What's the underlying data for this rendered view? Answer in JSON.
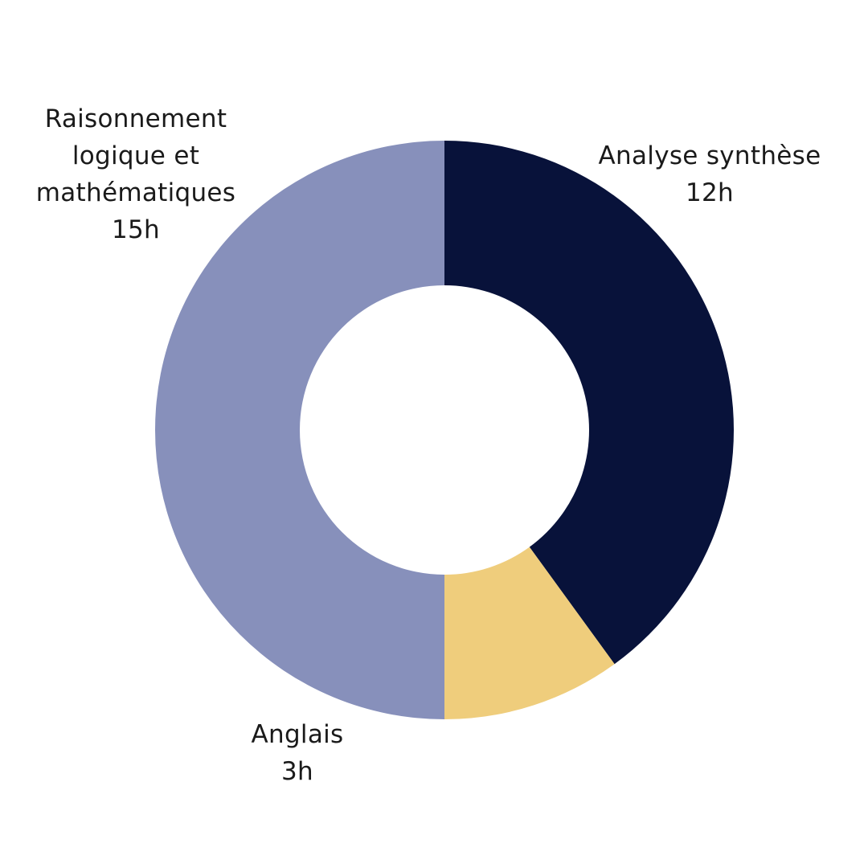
{
  "chart_data": {
    "type": "pie",
    "donut": true,
    "start": "top",
    "direction": "clockwise",
    "slices": [
      {
        "key": "analyse",
        "label_lines": [
          "Analyse synthèse"
        ],
        "value_text": "12h",
        "value": 12,
        "color": "#08123a"
      },
      {
        "key": "anglais",
        "label_lines": [
          "Anglais"
        ],
        "value_text": "3h",
        "value": 3,
        "color": "#efcd7c"
      },
      {
        "key": "raison",
        "label_lines": [
          "Raisonnement",
          "logique et",
          "mathématiques"
        ],
        "value_text": "15h",
        "value": 15,
        "color": "#8790bb"
      }
    ]
  }
}
